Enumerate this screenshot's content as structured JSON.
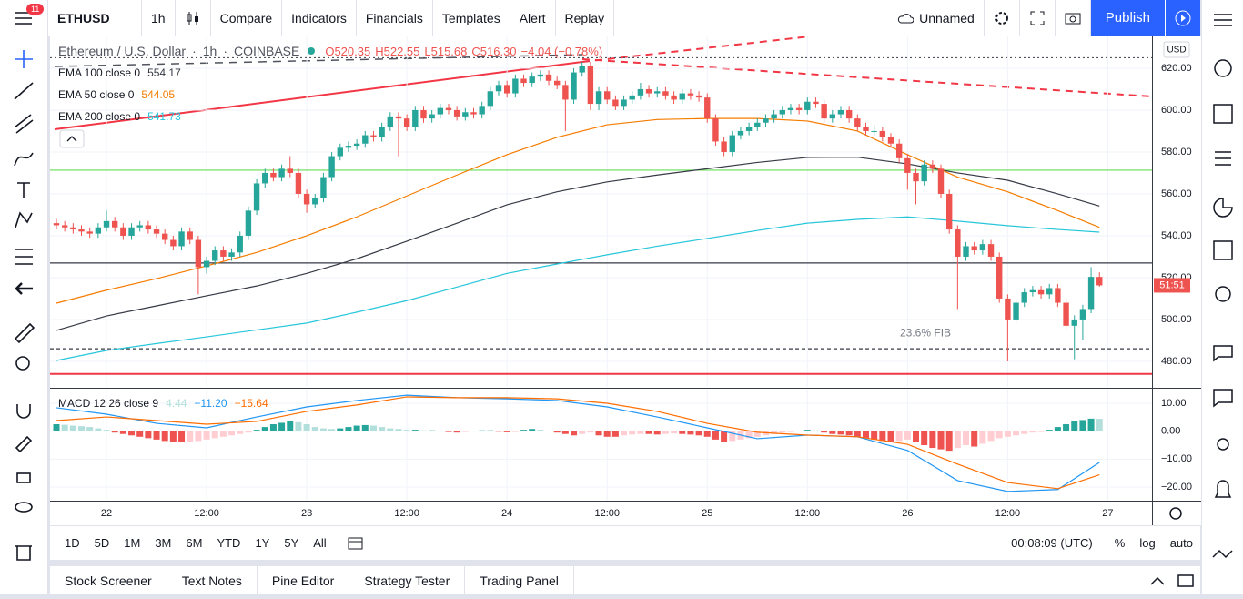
{
  "toolbar": {
    "badge": "11",
    "symbol": "ETHUSD",
    "interval": "1h",
    "items": [
      "Compare",
      "Indicators",
      "Financials",
      "Templates",
      "Alert",
      "Replay"
    ],
    "layout": "Unnamed",
    "publish": "Publish"
  },
  "chart_data": {
    "type": "candlestick",
    "symbol_title": "Ethereum / U.S. Dollar",
    "interval": "1h",
    "exchange": "COINBASE",
    "ohlc_labels": [
      "O520.35",
      "H522.55",
      "L515.68",
      "C516.30",
      "−4.04 (−0.78%)"
    ],
    "currency": "USD",
    "countdown": "51:51",
    "colors": {
      "up": "#26a69a",
      "down": "#ef5350"
    },
    "ylim": [
      467.8,
      635.2
    ],
    "yticks": [
      {
        "value": 480,
        "label": "480.00"
      },
      {
        "value": 500,
        "label": "500.00"
      },
      {
        "value": 520,
        "label": "520.00"
      },
      {
        "value": 540,
        "label": "540.00"
      },
      {
        "value": 560,
        "label": "560.00"
      },
      {
        "value": 580,
        "label": "580.00"
      },
      {
        "value": 600,
        "label": "600.00"
      },
      {
        "value": 620,
        "label": "620.00"
      }
    ],
    "grid": true,
    "x_labels": [
      "22",
      "12:00",
      "23",
      "12:00",
      "24",
      "12:00",
      "25",
      "12:00",
      "26",
      "12:00",
      "27"
    ],
    "candles": [
      [
        546,
        548,
        543,
        545
      ],
      [
        545,
        547,
        542,
        544
      ],
      [
        544,
        546,
        541,
        543
      ],
      [
        543,
        545,
        540,
        542
      ],
      [
        542,
        544,
        539,
        541
      ],
      [
        541,
        546,
        539,
        544
      ],
      [
        544,
        552,
        542,
        547
      ],
      [
        547,
        549,
        542,
        544
      ],
      [
        544,
        546,
        538,
        540
      ],
      [
        540,
        546,
        538,
        544
      ],
      [
        544,
        547,
        542,
        545
      ],
      [
        545,
        547,
        541,
        543
      ],
      [
        543,
        545,
        539,
        541
      ],
      [
        541,
        543,
        536,
        538
      ],
      [
        538,
        540,
        533,
        535
      ],
      [
        535,
        544,
        533,
        542
      ],
      [
        542,
        544,
        536,
        538
      ],
      [
        538,
        540,
        512,
        525
      ],
      [
        525,
        530,
        522,
        528
      ],
      [
        528,
        535,
        526,
        533
      ],
      [
        533,
        535,
        528,
        530
      ],
      [
        530,
        534,
        528,
        532
      ],
      [
        532,
        542,
        530,
        540
      ],
      [
        540,
        554,
        538,
        552
      ],
      [
        552,
        567,
        550,
        565
      ],
      [
        565,
        572,
        563,
        570
      ],
      [
        570,
        572,
        566,
        568
      ],
      [
        568,
        574,
        566,
        572
      ],
      [
        572,
        578,
        568,
        570
      ],
      [
        570,
        572,
        558,
        560
      ],
      [
        560,
        562,
        551,
        555
      ],
      [
        555,
        560,
        553,
        558
      ],
      [
        558,
        570,
        556,
        568
      ],
      [
        568,
        580,
        566,
        578
      ],
      [
        578,
        584,
        576,
        582
      ],
      [
        582,
        585,
        580,
        583
      ],
      [
        583,
        586,
        581,
        584
      ],
      [
        584,
        590,
        582,
        588
      ],
      [
        588,
        590,
        585,
        587
      ],
      [
        587,
        594,
        585,
        592
      ],
      [
        592,
        599,
        590,
        597
      ],
      [
        597,
        599,
        578,
        596
      ],
      [
        596,
        598,
        590,
        592
      ],
      [
        592,
        602,
        590,
        600
      ],
      [
        600,
        602,
        594,
        596
      ],
      [
        596,
        600,
        594,
        598
      ],
      [
        598,
        603,
        596,
        601
      ],
      [
        601,
        603,
        598,
        600
      ],
      [
        600,
        602,
        595,
        597
      ],
      [
        597,
        601,
        595,
        599
      ],
      [
        599,
        601,
        596,
        598
      ],
      [
        598,
        604,
        596,
        602
      ],
      [
        602,
        611,
        600,
        609
      ],
      [
        609,
        614,
        607,
        612
      ],
      [
        612,
        614,
        606,
        608
      ],
      [
        608,
        617,
        606,
        615
      ],
      [
        615,
        617,
        611,
        613
      ],
      [
        613,
        618,
        611,
        616
      ],
      [
        616,
        619,
        614,
        617
      ],
      [
        617,
        619,
        612,
        614
      ],
      [
        614,
        616,
        610,
        612
      ],
      [
        612,
        614,
        590,
        605
      ],
      [
        605,
        620,
        603,
        618
      ],
      [
        618,
        623,
        616,
        621
      ],
      [
        621,
        623,
        600,
        603
      ],
      [
        603,
        611,
        600,
        609
      ],
      [
        609,
        611,
        603,
        605
      ],
      [
        605,
        607,
        600,
        602
      ],
      [
        602,
        607,
        600,
        605
      ],
      [
        605,
        609,
        603,
        607
      ],
      [
        607,
        613,
        605,
        610
      ],
      [
        610,
        612,
        606,
        608
      ],
      [
        608,
        611,
        606,
        609
      ],
      [
        609,
        611,
        605,
        607
      ],
      [
        607,
        609,
        603,
        605
      ],
      [
        605,
        610,
        603,
        608
      ],
      [
        608,
        610,
        605,
        607
      ],
      [
        607,
        609,
        604,
        606
      ],
      [
        606,
        608,
        594,
        596
      ],
      [
        596,
        598,
        583,
        585
      ],
      [
        585,
        587,
        578,
        580
      ],
      [
        580,
        590,
        578,
        588
      ],
      [
        588,
        592,
        586,
        590
      ],
      [
        590,
        594,
        588,
        592
      ],
      [
        592,
        596,
        590,
        594
      ],
      [
        594,
        598,
        592,
        596
      ],
      [
        596,
        600,
        594,
        598
      ],
      [
        598,
        602,
        596,
        600
      ],
      [
        600,
        603,
        598,
        601
      ],
      [
        601,
        603,
        598,
        600
      ],
      [
        600,
        606,
        598,
        604
      ],
      [
        604,
        606,
        601,
        603
      ],
      [
        603,
        605,
        594,
        596
      ],
      [
        596,
        600,
        594,
        598
      ],
      [
        598,
        602,
        596,
        600
      ],
      [
        600,
        602,
        594,
        596
      ],
      [
        596,
        598,
        590,
        592
      ],
      [
        592,
        594,
        588,
        590
      ],
      [
        590,
        593,
        588,
        590
      ],
      [
        590,
        592,
        585,
        587
      ],
      [
        587,
        589,
        582,
        584
      ],
      [
        584,
        586,
        575,
        577
      ],
      [
        577,
        579,
        562,
        570
      ],
      [
        570,
        572,
        555,
        566
      ],
      [
        566,
        576,
        564,
        574
      ],
      [
        574,
        576,
        570,
        572
      ],
      [
        572,
        574,
        558,
        560
      ],
      [
        560,
        562,
        541,
        543
      ],
      [
        543,
        545,
        505,
        530
      ],
      [
        530,
        537,
        528,
        535
      ],
      [
        535,
        537,
        531,
        533
      ],
      [
        533,
        538,
        531,
        536
      ],
      [
        536,
        538,
        528,
        530
      ],
      [
        530,
        532,
        508,
        510
      ],
      [
        510,
        512,
        480,
        500
      ],
      [
        500,
        510,
        498,
        508
      ],
      [
        508,
        515,
        506,
        513
      ],
      [
        513,
        516,
        511,
        514
      ],
      [
        514,
        516,
        510,
        512
      ],
      [
        512,
        517,
        510,
        515
      ],
      [
        515,
        517,
        506,
        508
      ],
      [
        508,
        510,
        495,
        497
      ],
      [
        497,
        502,
        481,
        500
      ],
      [
        500,
        507,
        490,
        505
      ],
      [
        505,
        525,
        503,
        520.35
      ],
      [
        520.35,
        522.55,
        515.68,
        516.3
      ]
    ],
    "series": [
      {
        "name": "EMA 100 close 0",
        "color": "#363a45",
        "values": [
          494.8,
          501.7,
          506.5,
          511.3,
          516,
          522,
          529,
          537.4,
          546,
          554.8,
          561,
          565.7,
          569,
          572,
          575,
          577.4,
          577.5,
          574.3,
          570,
          566.5,
          560,
          554.17
        ]
      },
      {
        "name": "EMA 50 close 0",
        "color": "#f57c00",
        "values": [
          507.8,
          514,
          519.5,
          525.6,
          532,
          540,
          549,
          559,
          569,
          578.7,
          587,
          593,
          595.5,
          596,
          596,
          594.8,
          590,
          578.7,
          568,
          561,
          552,
          544.05
        ]
      },
      {
        "name": "EMA 200 close 0",
        "color": "#26c6da",
        "values": [
          480.4,
          485.2,
          488.5,
          491.7,
          495,
          498.3,
          503.5,
          509,
          515.5,
          522,
          526.5,
          530.9,
          535,
          538.7,
          542.5,
          546,
          547.8,
          549,
          547,
          544.8,
          543,
          541.73
        ]
      }
    ],
    "levels": [
      {
        "value": 625,
        "color": "#50535e",
        "style": "dotted"
      },
      {
        "value": 571.3,
        "color": "#66dd55",
        "style": "solid"
      },
      {
        "value": 527,
        "color": "#363a45",
        "style": "solid"
      },
      {
        "value": 486,
        "color": "#363a45",
        "style": "dashed",
        "label": "23.6% FIB"
      },
      {
        "value": 474,
        "color": "#f23645",
        "style": "thick"
      }
    ],
    "macd": {
      "name": "MACD 12 26 close 9",
      "ylim": [
        -24.9,
        14.9
      ],
      "yticks": [
        {
          "value": 10,
          "label": "10.00"
        },
        {
          "value": 0,
          "label": "0.00"
        },
        {
          "value": -10,
          "label": "−10.00"
        },
        {
          "value": -20,
          "label": "−20.00"
        }
      ],
      "histogram": {
        "colors": {
          "up": "#26a69a",
          "up_fading": "#b2dfdb",
          "down": "#ef5350",
          "down_fading": "#ffcdd2"
        },
        "values": [
          2.5,
          2.3,
          2.0,
          1.8,
          1.5,
          1.0,
          0.5,
          -0.5,
          -1,
          -1.5,
          -2,
          -2.5,
          -3,
          -3.5,
          -3.8,
          -4,
          -3.8,
          -3.5,
          -3,
          -2.5,
          -2,
          -1.5,
          -1,
          -0.5,
          0.5,
          1.5,
          2.5,
          3,
          3.5,
          3.2,
          2.5,
          1.5,
          1,
          0.8,
          1,
          1.5,
          2,
          2.2,
          2,
          1.5,
          1,
          0.8,
          0.5,
          0.5,
          0.3,
          0.3,
          0.2,
          -0.3,
          -0.5,
          -0.3,
          0.2,
          0.3,
          0.3,
          -0.2,
          -0.4,
          -0.3,
          0.5,
          0.8,
          0.5,
          0.2,
          -0.5,
          -1,
          -1.5,
          -1,
          -0.5,
          -1.5,
          -2,
          -2,
          -1.5,
          -1.2,
          -1,
          -1,
          -1.2,
          -1,
          -0.8,
          -1,
          -1.2,
          -1.5,
          -2,
          -3,
          -4,
          -3.5,
          -3,
          -2.5,
          -2,
          -1.5,
          -1,
          -0.5,
          -0.3,
          0.2,
          0.5,
          0.3,
          -0.5,
          -1,
          -1.2,
          -1.5,
          -2,
          -2.5,
          -3,
          -3.5,
          -3.8,
          -3.5,
          -3,
          -4,
          -5,
          -6,
          -6.5,
          -7,
          -6,
          -5,
          -5.5,
          -4.5,
          -3.5,
          -2.5,
          -2,
          -1.5,
          -1,
          -0.5,
          -0.3,
          0.5,
          1.5,
          2.5,
          3.5,
          4,
          4.5,
          4.44
        ]
      },
      "series": [
        {
          "color": "#2196f3",
          "value_label": "−11.20",
          "values": [
            8.4,
            6.1,
            2.8,
            1.2,
            5.1,
            8.7,
            11,
            12.9,
            12,
            11.6,
            11,
            8.7,
            5.1,
            1.2,
            -2.7,
            -1.4,
            -2,
            -6.9,
            -17.7,
            -21.6,
            -20.9,
            -11.2
          ]
        },
        {
          "color": "#ff6d00",
          "value_label": "−15.64",
          "values": [
            3.8,
            5.1,
            3.8,
            2.5,
            3.5,
            7.1,
            9.4,
            12.3,
            12,
            12,
            11.6,
            10,
            7.1,
            2.8,
            -0.4,
            -1.4,
            -2,
            -4.7,
            -11.8,
            -18.4,
            -20.6,
            -15.64
          ]
        }
      ]
    }
  },
  "bottom_bar": {
    "ranges": [
      "1D",
      "5D",
      "1M",
      "3M",
      "6M",
      "YTD",
      "1Y",
      "5Y",
      "All"
    ],
    "clock": "00:08:09 (UTC)",
    "scale_options": [
      "%",
      "log",
      "auto"
    ]
  },
  "panel_tabs": [
    "Stock Screener",
    "Text Notes",
    "Pine Editor",
    "Strategy Tester",
    "Trading Panel"
  ]
}
